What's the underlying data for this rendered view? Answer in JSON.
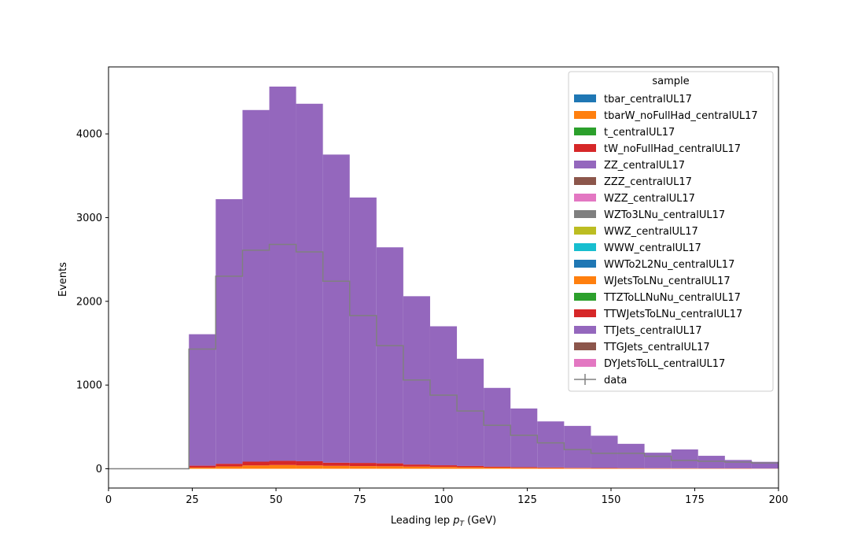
{
  "chart_data": {
    "type": "bar",
    "stacked": true,
    "histogram": true,
    "bin_edges": [
      0,
      8,
      16,
      24,
      32,
      40,
      48,
      56,
      64,
      72,
      80,
      88,
      96,
      104,
      112,
      120,
      128,
      136,
      144,
      152,
      160,
      168,
      176,
      184,
      192,
      200
    ],
    "xlabel_parts": {
      "text": "Leading lep ",
      "math_base": "p",
      "math_sub": "T",
      "suffix": " (GeV)"
    },
    "xlabel": "Leading lep p_T (GeV)",
    "ylabel": "Events",
    "xlim": [
      0,
      200
    ],
    "ylim": [
      -230,
      4800
    ],
    "xticks": [
      0,
      25,
      50,
      75,
      100,
      125,
      150,
      175,
      200
    ],
    "yticks": [
      0,
      1000,
      2000,
      3000,
      4000
    ],
    "grid": false,
    "legend": {
      "title": "sample",
      "placement": "top-right"
    },
    "series": [
      {
        "name": "tbar_centralUL17",
        "color": "#1f77b4",
        "values": [
          0,
          0,
          0,
          0,
          0,
          0,
          0,
          0,
          0,
          0,
          0,
          0,
          0,
          0,
          0,
          0,
          0,
          0,
          0,
          0,
          0,
          0,
          0,
          0,
          0
        ]
      },
      {
        "name": "tbarW_noFullHad_centralUL17",
        "color": "#ff7f0e",
        "values": [
          0,
          0,
          0,
          15,
          28,
          40,
          45,
          40,
          35,
          32,
          30,
          26,
          22,
          18,
          14,
          11,
          9,
          7,
          6,
          5,
          4,
          4,
          3,
          3,
          2
        ]
      },
      {
        "name": "t_centralUL17",
        "color": "#2ca02c",
        "values": [
          0,
          0,
          0,
          0,
          0,
          0,
          0,
          0,
          0,
          0,
          0,
          0,
          0,
          0,
          0,
          0,
          0,
          0,
          0,
          0,
          0,
          0,
          0,
          0,
          0
        ]
      },
      {
        "name": "tW_noFullHad_centralUL17",
        "color": "#d62728",
        "values": [
          0,
          0,
          0,
          22,
          32,
          45,
          50,
          50,
          38,
          38,
          35,
          25,
          20,
          16,
          12,
          9,
          7,
          5,
          4,
          3,
          3,
          2,
          2,
          2,
          1
        ]
      },
      {
        "name": "ZZ_centralUL17",
        "color": "#9467bd",
        "values": [
          0,
          0,
          0,
          1570,
          3160,
          4200,
          4470,
          4270,
          3680,
          3170,
          2580,
          2010,
          1660,
          1280,
          940,
          700,
          550,
          500,
          385,
          290,
          185,
          225,
          150,
          100,
          80
        ]
      },
      {
        "name": "ZZZ_centralUL17",
        "color": "#8c564b",
        "values": [
          0,
          0,
          0,
          0,
          0,
          0,
          0,
          0,
          0,
          0,
          0,
          0,
          0,
          0,
          0,
          0,
          0,
          0,
          0,
          0,
          0,
          0,
          0,
          0,
          0
        ]
      },
      {
        "name": "WZZ_centralUL17",
        "color": "#e377c2",
        "values": [
          0,
          0,
          0,
          0,
          0,
          0,
          0,
          0,
          0,
          0,
          0,
          0,
          0,
          0,
          0,
          0,
          0,
          0,
          0,
          0,
          0,
          0,
          0,
          0,
          0
        ]
      },
      {
        "name": "WZTo3LNu_centralUL17",
        "color": "#7f7f7f",
        "values": [
          0,
          0,
          0,
          0,
          0,
          0,
          0,
          0,
          0,
          0,
          0,
          0,
          0,
          0,
          0,
          0,
          0,
          0,
          0,
          0,
          0,
          0,
          0,
          0,
          0
        ]
      },
      {
        "name": "WWZ_centralUL17",
        "color": "#bcbd22",
        "values": [
          0,
          0,
          0,
          0,
          0,
          0,
          0,
          0,
          0,
          0,
          0,
          0,
          0,
          0,
          0,
          0,
          0,
          0,
          0,
          0,
          0,
          0,
          0,
          0,
          0
        ]
      },
      {
        "name": "WWW_centralUL17",
        "color": "#17becf",
        "values": [
          0,
          0,
          0,
          0,
          0,
          0,
          0,
          0,
          0,
          0,
          0,
          0,
          0,
          0,
          0,
          0,
          0,
          0,
          0,
          0,
          0,
          0,
          0,
          0,
          0
        ]
      },
      {
        "name": "WWTo2L2Nu_centralUL17",
        "color": "#1f77b4",
        "values": [
          0,
          0,
          0,
          0,
          0,
          0,
          0,
          0,
          0,
          0,
          0,
          0,
          0,
          0,
          0,
          0,
          0,
          0,
          0,
          0,
          0,
          0,
          0,
          0,
          0
        ]
      },
      {
        "name": "WJetsToLNu_centralUL17",
        "color": "#ff7f0e",
        "values": [
          0,
          0,
          0,
          0,
          0,
          0,
          0,
          0,
          0,
          0,
          0,
          0,
          0,
          0,
          0,
          0,
          0,
          0,
          0,
          0,
          0,
          0,
          0,
          0,
          0
        ]
      },
      {
        "name": "TTZToLLNuNu_centralUL17",
        "color": "#2ca02c",
        "values": [
          0,
          0,
          0,
          0,
          0,
          0,
          0,
          0,
          0,
          0,
          0,
          0,
          0,
          0,
          0,
          0,
          0,
          0,
          0,
          0,
          0,
          0,
          0,
          0,
          0
        ]
      },
      {
        "name": "TTWJetsToLNu_centralUL17",
        "color": "#d62728",
        "values": [
          0,
          0,
          0,
          0,
          0,
          0,
          0,
          0,
          0,
          0,
          0,
          0,
          0,
          0,
          0,
          0,
          0,
          0,
          0,
          0,
          0,
          0,
          0,
          0,
          0
        ]
      },
      {
        "name": "TTJets_centralUL17",
        "color": "#9467bd",
        "values": [
          0,
          0,
          0,
          0,
          0,
          0,
          0,
          0,
          0,
          0,
          0,
          0,
          0,
          0,
          0,
          0,
          0,
          0,
          0,
          0,
          0,
          0,
          0,
          0,
          0
        ]
      },
      {
        "name": "TTGJets_centralUL17",
        "color": "#8c564b",
        "values": [
          0,
          0,
          0,
          0,
          0,
          0,
          0,
          0,
          0,
          0,
          0,
          0,
          0,
          0,
          0,
          0,
          0,
          0,
          0,
          0,
          0,
          0,
          0,
          0,
          0
        ]
      },
      {
        "name": "DYJetsToLL_centralUL17",
        "color": "#e377c2",
        "values": [
          0,
          0,
          0,
          0,
          0,
          0,
          0,
          0,
          0,
          0,
          0,
          0,
          0,
          0,
          0,
          0,
          0,
          0,
          0,
          0,
          0,
          0,
          0,
          0,
          0
        ]
      }
    ],
    "data": {
      "name": "data",
      "color": "#808080",
      "values": [
        0,
        0,
        0,
        1430,
        2300,
        2610,
        2680,
        2590,
        2240,
        1830,
        1470,
        1060,
        880,
        690,
        520,
        400,
        310,
        230,
        185,
        185,
        150,
        100,
        90,
        80,
        70
      ]
    }
  }
}
